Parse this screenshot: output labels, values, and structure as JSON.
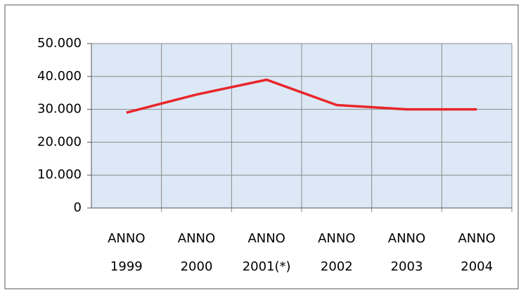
{
  "chart_data": {
    "type": "line",
    "categories": [
      "ANNO 1999",
      "ANNO 2000",
      "ANNO 2001(*)",
      "ANNO 2002",
      "ANNO 2003",
      "ANNO 2004"
    ],
    "series": [
      {
        "name": null,
        "color": "#e8262a",
        "values": [
          29000,
          34500,
          39000,
          31300,
          30000,
          30000
        ]
      }
    ],
    "ylim": [
      0,
      50000
    ],
    "yticks": [
      0,
      {
        "value": 10000,
        "label": "10.000"
      },
      {
        "value": 20000,
        "label": "20.000"
      },
      {
        "value": 30000,
        "label": "30.000"
      },
      {
        "value": 40000,
        "label": "40.000"
      },
      {
        "value": 50000,
        "label": "50.000"
      }
    ],
    "grid": true
  }
}
